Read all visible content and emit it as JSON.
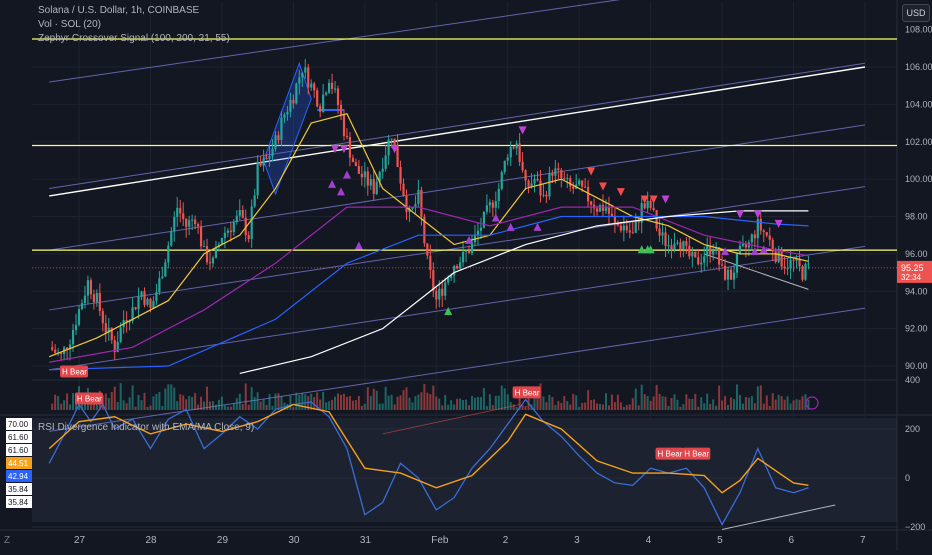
{
  "header": {
    "symbol_line": "Solana / U.S. Dollar, 1h, COINBASE",
    "indicator_vol": "Vol · SOL (20)",
    "indicator_signal": "Zephyr Crossover Signal (100, 200, 21, 55)",
    "currency_button": "USD",
    "rsi_title": "RSI Divergence Indicator with EMA/MA Close, 9)"
  },
  "colors": {
    "background": "#131722",
    "bull": "#26a69a",
    "bear": "#ef5350",
    "ema_fast": "#f0c938",
    "ema_purple": "#9c27b0",
    "ma_blue": "#2962ff",
    "ma_white": "#ffffff",
    "channel": "#7b7fd8",
    "horizontal": "#ffff66",
    "rsi_line": "#3a6dd8",
    "rsi_ema": "#f7a21b"
  },
  "price_axis": {
    "ticks": [
      "106.00",
      "104.00",
      "102.00",
      "100.00",
      "98.00",
      "96.00",
      "94.00",
      "92.00",
      "90.00"
    ],
    "top_label": "108.00",
    "current_price": "95.25",
    "countdown": "32:34",
    "ylim": [
      89.5,
      108.5
    ]
  },
  "osc_axis": {
    "ticks": [
      "400",
      "200",
      "0",
      "−200"
    ],
    "ylim": [
      -260,
      420
    ],
    "left_badges": [
      {
        "text": "70.00",
        "style": "plain"
      },
      {
        "text": "61.60",
        "style": "plain"
      },
      {
        "text": "61.60",
        "style": "plain"
      },
      {
        "text": "44.51",
        "style": "orange"
      },
      {
        "text": "42.94",
        "style": "blue"
      },
      {
        "text": "35.84",
        "style": "plain"
      },
      {
        "text": "35.84",
        "style": "plain"
      }
    ]
  },
  "time_axis": {
    "labels": [
      {
        "t": 0,
        "text": "27"
      },
      {
        "t": 24,
        "text": "28"
      },
      {
        "t": 48,
        "text": "29"
      },
      {
        "t": 72,
        "text": "30"
      },
      {
        "t": 96,
        "text": "31"
      },
      {
        "t": 120,
        "text": "Feb"
      },
      {
        "t": 144,
        "text": "2"
      },
      {
        "t": 168,
        "text": "3"
      },
      {
        "t": 192,
        "text": "4"
      },
      {
        "t": 216,
        "text": "5"
      },
      {
        "t": 240,
        "text": "6"
      },
      {
        "t": 264,
        "text": "7"
      }
    ],
    "first_label": "Z"
  },
  "chart_data": {
    "type": "line",
    "title": "Solana / U.S. Dollar, 1h, COINBASE",
    "xlabel": "",
    "ylabel": "",
    "x_unit": "hours since 27 Jan 00:00",
    "series": [
      {
        "values": [
          [
            -10,
            91.0
          ],
          [
            -6,
            90.5
          ],
          [
            -3,
            91.5
          ],
          [
            0,
            93.0
          ],
          [
            3,
            94.5
          ],
          [
            6,
            93.5
          ],
          [
            9,
            92.0
          ],
          [
            12,
            91.0
          ],
          [
            15,
            92.5
          ],
          [
            18,
            93.0
          ],
          [
            21,
            94.0
          ],
          [
            24,
            93.0
          ],
          [
            27,
            94.5
          ],
          [
            30,
            96.5
          ],
          [
            33,
            98.5
          ],
          [
            36,
            97.5
          ],
          [
            39,
            98.0
          ],
          [
            42,
            96.0
          ],
          [
            45,
            95.5
          ],
          [
            48,
            97.0
          ],
          [
            51,
            97.5
          ],
          [
            54,
            98.0
          ],
          [
            57,
            97.0
          ],
          [
            60,
            100.5
          ],
          [
            63,
            101.0
          ],
          [
            66,
            102.0
          ],
          [
            69,
            103.5
          ],
          [
            72,
            104.5
          ],
          [
            75,
            106.0
          ],
          [
            78,
            105.0
          ],
          [
            81,
            104.0
          ],
          [
            84,
            105.5
          ],
          [
            87,
            104.0
          ],
          [
            90,
            102.0
          ],
          [
            93,
            100.5
          ],
          [
            96,
            100.0
          ],
          [
            99,
            99.5
          ],
          [
            102,
            101.0
          ],
          [
            105,
            102.5
          ],
          [
            108,
            100.0
          ],
          [
            111,
            98.0
          ],
          [
            114,
            99.0
          ],
          [
            117,
            95.5
          ],
          [
            120,
            93.5
          ],
          [
            123,
            94.5
          ],
          [
            126,
            95.5
          ],
          [
            129,
            95.8
          ],
          [
            132,
            96.5
          ],
          [
            135,
            97.5
          ],
          [
            138,
            98.5
          ],
          [
            141,
            99.5
          ],
          [
            144,
            101.5
          ],
          [
            147,
            102.0
          ],
          [
            150,
            99.5
          ],
          [
            153,
            100.0
          ],
          [
            156,
            99.0
          ],
          [
            159,
            100.5
          ],
          [
            162,
            100.0
          ],
          [
            165,
            99.5
          ],
          [
            168,
            99.5
          ],
          [
            171,
            99.0
          ],
          [
            174,
            98.5
          ],
          [
            177,
            98.5
          ],
          [
            180,
            97.5
          ],
          [
            183,
            97.5
          ],
          [
            186,
            97.0
          ],
          [
            189,
            98.5
          ],
          [
            192,
            98.5
          ],
          [
            195,
            97.0
          ],
          [
            198,
            96.5
          ],
          [
            201,
            97.0
          ],
          [
            204,
            96.0
          ],
          [
            207,
            95.5
          ],
          [
            210,
            96.0
          ],
          [
            213,
            96.5
          ],
          [
            216,
            95.0
          ],
          [
            219,
            94.8
          ],
          [
            222,
            96.0
          ],
          [
            225,
            96.5
          ],
          [
            228,
            97.5
          ],
          [
            231,
            97.0
          ],
          [
            234,
            96.0
          ],
          [
            237,
            95.5
          ],
          [
            240,
            95.5
          ],
          [
            243,
            95.0
          ],
          [
            245,
            95.25
          ]
        ]
      },
      {
        "values": [
          [
            -10,
            90.5
          ],
          [
            6,
            91.5
          ],
          [
            18,
            92.5
          ],
          [
            30,
            93.5
          ],
          [
            42,
            96.0
          ],
          [
            54,
            97.0
          ],
          [
            66,
            99.5
          ],
          [
            78,
            103.0
          ],
          [
            90,
            103.5
          ],
          [
            102,
            99.5
          ],
          [
            114,
            98.0
          ],
          [
            126,
            96.5
          ],
          [
            138,
            97.0
          ],
          [
            150,
            99.5
          ],
          [
            162,
            100.0
          ],
          [
            174,
            99.0
          ],
          [
            186,
            98.0
          ],
          [
            198,
            97.5
          ],
          [
            210,
            96.5
          ],
          [
            222,
            96.0
          ],
          [
            234,
            96.0
          ],
          [
            245,
            95.6
          ]
        ]
      },
      {
        "values": [
          [
            -10,
            90.2
          ],
          [
            18,
            91.0
          ],
          [
            42,
            93.0
          ],
          [
            66,
            95.5
          ],
          [
            90,
            98.5
          ],
          [
            114,
            98.5
          ],
          [
            138,
            97.5
          ],
          [
            162,
            98.5
          ],
          [
            186,
            98.5
          ],
          [
            210,
            97.0
          ],
          [
            234,
            96.2
          ],
          [
            245,
            95.9
          ]
        ]
      },
      {
        "values": [
          [
            -10,
            89.8
          ],
          [
            30,
            90.0
          ],
          [
            66,
            92.5
          ],
          [
            90,
            95.5
          ],
          [
            114,
            97.0
          ],
          [
            138,
            97.0
          ],
          [
            162,
            98.0
          ],
          [
            186,
            98.0
          ],
          [
            210,
            98.0
          ],
          [
            234,
            97.6
          ],
          [
            245,
            97.5
          ]
        ]
      },
      {
        "values": [
          [
            54,
            89.6
          ],
          [
            78,
            90.5
          ],
          [
            102,
            92.0
          ],
          [
            114,
            93.5
          ],
          [
            126,
            95.0
          ],
          [
            150,
            96.5
          ],
          [
            174,
            97.5
          ],
          [
            198,
            98.0
          ],
          [
            222,
            98.3
          ],
          [
            245,
            98.3
          ]
        ]
      }
    ],
    "horizontal_levels": [
      107.5,
      101.8,
      96.2
    ],
    "ylim": [
      89.5,
      108.5
    ],
    "signals_down": [
      [
        86,
        101.5
      ],
      [
        89,
        101.5
      ],
      [
        106,
        101.5
      ],
      [
        149,
        102.5
      ],
      [
        172,
        100.3
      ],
      [
        176,
        99.5
      ],
      [
        182,
        99.2
      ],
      [
        190,
        98.8
      ],
      [
        193,
        98.8
      ],
      [
        197,
        98.8
      ],
      [
        222,
        98.0
      ],
      [
        228,
        98.0
      ],
      [
        235,
        97.5
      ]
    ],
    "signals_up": [
      [
        85,
        99.8
      ],
      [
        88,
        99.4
      ],
      [
        90,
        100.3
      ],
      [
        94,
        96.5
      ],
      [
        124,
        93.0
      ],
      [
        131,
        96.8
      ],
      [
        140,
        98.0
      ],
      [
        145,
        97.5
      ],
      [
        154,
        97.5
      ],
      [
        189,
        96.3
      ],
      [
        191,
        96.3
      ],
      [
        192,
        96.3
      ],
      [
        217,
        96.2
      ],
      [
        227,
        96.2
      ],
      [
        230,
        96.3
      ]
    ],
    "osc_series": [
      {
        "values": [
          [
            -10,
            60
          ],
          [
            -4,
            200
          ],
          [
            0,
            300
          ],
          [
            4,
            230
          ],
          [
            8,
            300
          ],
          [
            12,
            200
          ],
          [
            18,
            240
          ],
          [
            24,
            120
          ],
          [
            30,
            240
          ],
          [
            36,
            280
          ],
          [
            42,
            120
          ],
          [
            48,
            180
          ],
          [
            54,
            250
          ],
          [
            60,
            200
          ],
          [
            66,
            280
          ],
          [
            72,
            300
          ],
          [
            78,
            310
          ],
          [
            84,
            250
          ],
          [
            90,
            120
          ],
          [
            96,
            -150
          ],
          [
            102,
            -100
          ],
          [
            108,
            60
          ],
          [
            114,
            0
          ],
          [
            120,
            -130
          ],
          [
            126,
            -80
          ],
          [
            132,
            40
          ],
          [
            138,
            120
          ],
          [
            144,
            220
          ],
          [
            150,
            320
          ],
          [
            156,
            230
          ],
          [
            162,
            170
          ],
          [
            168,
            90
          ],
          [
            174,
            20
          ],
          [
            180,
            -20
          ],
          [
            186,
            -30
          ],
          [
            192,
            40
          ],
          [
            198,
            20
          ],
          [
            204,
            40
          ],
          [
            210,
            -40
          ],
          [
            216,
            -190
          ],
          [
            222,
            -60
          ],
          [
            228,
            120
          ],
          [
            234,
            -40
          ],
          [
            240,
            -60
          ],
          [
            245,
            -40
          ]
        ]
      },
      {
        "values": [
          [
            -10,
            120
          ],
          [
            0,
            230
          ],
          [
            12,
            250
          ],
          [
            24,
            180
          ],
          [
            36,
            220
          ],
          [
            48,
            190
          ],
          [
            60,
            230
          ],
          [
            72,
            300
          ],
          [
            84,
            270
          ],
          [
            96,
            40
          ],
          [
            108,
            20
          ],
          [
            120,
            -40
          ],
          [
            132,
            10
          ],
          [
            144,
            150
          ],
          [
            150,
            260
          ],
          [
            162,
            200
          ],
          [
            174,
            70
          ],
          [
            186,
            20
          ],
          [
            198,
            20
          ],
          [
            210,
            10
          ],
          [
            216,
            -60
          ],
          [
            222,
            -10
          ],
          [
            228,
            80
          ],
          [
            234,
            30
          ],
          [
            240,
            -20
          ],
          [
            245,
            -30
          ]
        ]
      }
    ],
    "osc_labels": [
      {
        "t": -2,
        "v": 410,
        "text": "H Bear"
      },
      {
        "t": 3,
        "v": 300,
        "text": "H Bear"
      },
      {
        "t": 150,
        "v": 325,
        "text": "H Bear"
      },
      {
        "t": 198,
        "v": 75,
        "text": "H Bear"
      },
      {
        "t": 207,
        "v": 75,
        "text": "H Bear"
      }
    ]
  }
}
